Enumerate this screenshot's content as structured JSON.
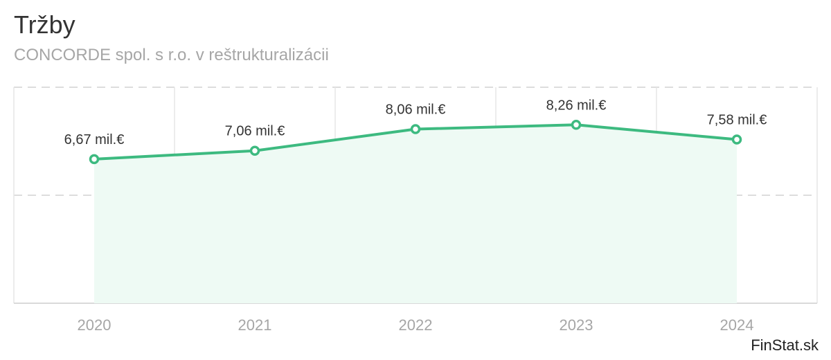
{
  "chart_data": {
    "type": "area",
    "title": "Tržby",
    "subtitle": "CONCORDE spol. s r.o. v reštrukturalizácii",
    "categories": [
      "2020",
      "2021",
      "2022",
      "2023",
      "2024"
    ],
    "series": [
      {
        "values": [
          6.67,
          7.06,
          8.06,
          8.26,
          7.58
        ],
        "labels": [
          "6,67 mil.€",
          "7,06 mil.€",
          "8,06 mil.€",
          "8,26 mil.€",
          "7,58 mil.€"
        ]
      }
    ],
    "ylim": [
      0,
      10
    ],
    "grid": true,
    "colors": {
      "line": "#3dba80",
      "fill": "#eefaf4",
      "grid": "#dddddd"
    }
  },
  "footer": {
    "source": "FinStat.sk"
  }
}
